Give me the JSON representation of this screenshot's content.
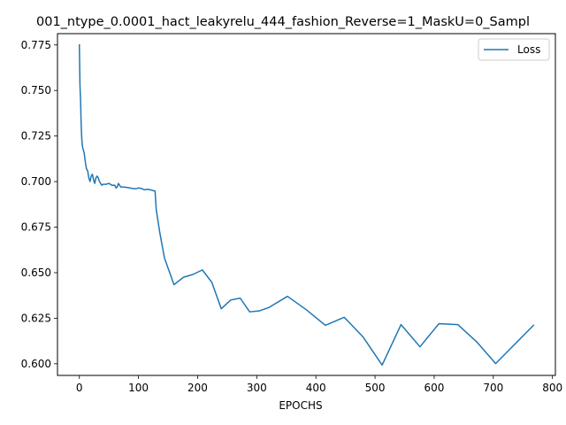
{
  "chart_data": {
    "type": "line",
    "title": "001_ntype_0.0001_hact_leakyrelu_444_fashion_Reverse=1_MaskU=0_Sampl",
    "xlabel": "EPOCHS",
    "ylabel": "",
    "xlim": [
      -37,
      805
    ],
    "ylim": [
      0.5936,
      0.7812
    ],
    "x_ticks": [
      0,
      100,
      200,
      300,
      400,
      500,
      600,
      700,
      800
    ],
    "y_ticks": [
      0.6,
      0.625,
      0.65,
      0.675,
      0.7,
      0.725,
      0.75,
      0.775
    ],
    "x_tick_labels": [
      "0",
      "100",
      "200",
      "300",
      "400",
      "500",
      "600",
      "700",
      "800"
    ],
    "y_tick_labels": [
      "0.600",
      "0.625",
      "0.650",
      "0.675",
      "0.700",
      "0.725",
      "0.750",
      "0.775"
    ],
    "grid": false,
    "legend_position": "top-right",
    "series": [
      {
        "name": "Loss",
        "color": "#1f77b4",
        "x": [
          0,
          1,
          2,
          3,
          4,
          5,
          6,
          8,
          10,
          12,
          14,
          16,
          18,
          20,
          22,
          24,
          26,
          28,
          30,
          32,
          34,
          36,
          38,
          40,
          45,
          50,
          55,
          60,
          62,
          64,
          66,
          68,
          70,
          75,
          80,
          85,
          90,
          95,
          100,
          105,
          110,
          115,
          120,
          125,
          128,
          130,
          136,
          144,
          160,
          176,
          192,
          208,
          224,
          240,
          256,
          272,
          288,
          304,
          320,
          352,
          384,
          416,
          448,
          480,
          512,
          544,
          576,
          608,
          640,
          672,
          704,
          736,
          768
        ],
        "y": [
          0.775,
          0.753,
          0.745,
          0.732,
          0.724,
          0.72,
          0.718,
          0.716,
          0.711,
          0.707,
          0.706,
          0.702,
          0.7,
          0.703,
          0.704,
          0.701,
          0.699,
          0.702,
          0.703,
          0.702,
          0.7,
          0.699,
          0.698,
          0.6985,
          0.6985,
          0.699,
          0.698,
          0.698,
          0.6965,
          0.697,
          0.699,
          0.698,
          0.697,
          0.697,
          0.6968,
          0.6965,
          0.6962,
          0.696,
          0.6965,
          0.6962,
          0.6955,
          0.6958,
          0.6955,
          0.695,
          0.6948,
          0.6846,
          0.672,
          0.658,
          0.6434,
          0.6475,
          0.649,
          0.6515,
          0.6447,
          0.6302,
          0.635,
          0.636,
          0.6285,
          0.629,
          0.6308,
          0.637,
          0.6296,
          0.6211,
          0.6255,
          0.6146,
          0.5993,
          0.6215,
          0.6093,
          0.622,
          0.6215,
          0.612,
          0.6001,
          0.6106,
          0.6211
        ]
      }
    ]
  }
}
